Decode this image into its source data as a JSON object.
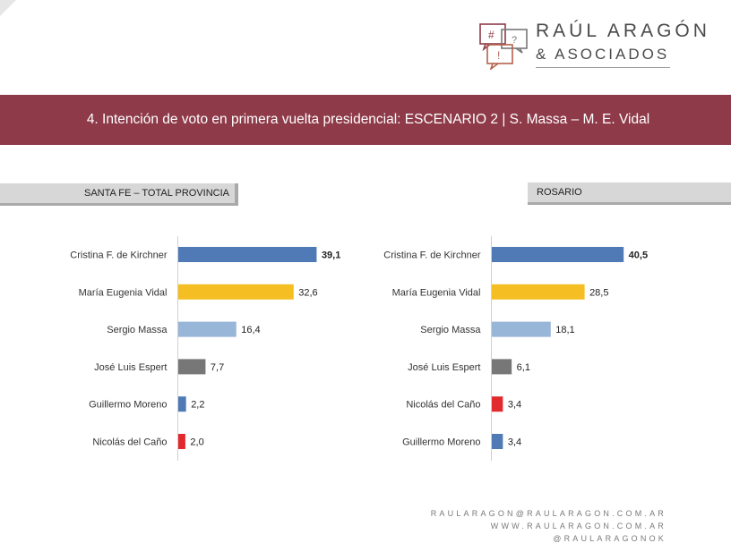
{
  "header": {
    "brand_line1": "RAÚL ARAGÓN",
    "brand_line2": "& ASOCIADOS",
    "logo_symbols": [
      "#",
      "?",
      "!"
    ]
  },
  "banner": {
    "title": "4. Intención de voto en primera vuelta presidencial: ESCENARIO 2 | S. Massa – M. E. Vidal"
  },
  "sections": {
    "left_label": "SANTA FE – TOTAL PROVINCIA",
    "right_label": "ROSARIO"
  },
  "colors": {
    "banner": "#8e3a49",
    "blue": "#4f7ab5",
    "yellow": "#f5be22",
    "light_blue": "#98b6d8",
    "gray": "#777777",
    "red": "#e2292d"
  },
  "chart_data": [
    {
      "type": "bar",
      "orientation": "horizontal",
      "title": "SANTA FE – TOTAL PROVINCIA",
      "categories": [
        "Cristina F. de Kirchner",
        "María Eugenia Vidal",
        "Sergio Massa",
        "José Luis Espert",
        "Guillermo Moreno",
        "Nicolás del Caño"
      ],
      "values": [
        39.1,
        32.6,
        16.4,
        7.7,
        2.2,
        2.0
      ],
      "labels": [
        "39,1",
        "32,6",
        "16,4",
        "7,7",
        "2,2",
        "2,0"
      ],
      "bold": [
        true,
        false,
        false,
        false,
        false,
        false
      ],
      "colors": [
        "#4f7ab5",
        "#f5be22",
        "#98b6d8",
        "#777777",
        "#4f7ab5",
        "#e2292d"
      ],
      "xlim": [
        0,
        40
      ]
    },
    {
      "type": "bar",
      "orientation": "horizontal",
      "title": "ROSARIO",
      "categories": [
        "Cristina F. de Kirchner",
        "María Eugenia Vidal",
        "Sergio Massa",
        "José Luis Espert",
        "Nicolás del Caño",
        "Guillermo Moreno"
      ],
      "values": [
        40.5,
        28.5,
        18.1,
        6.1,
        3.4,
        3.4
      ],
      "labels": [
        "40,5",
        "28,5",
        "18,1",
        "6,1",
        "3,4",
        "3,4"
      ],
      "bold": [
        true,
        false,
        false,
        false,
        false,
        false
      ],
      "colors": [
        "#4f7ab5",
        "#f5be22",
        "#98b6d8",
        "#777777",
        "#e2292d",
        "#4f7ab5"
      ],
      "xlim": [
        0,
        41
      ]
    }
  ],
  "footer": {
    "email": "RAULARAGON@RAULARAGON.COM.AR",
    "web": "WWW.RAULARAGON.COM.AR",
    "social": "@RAULARAGONOK"
  }
}
